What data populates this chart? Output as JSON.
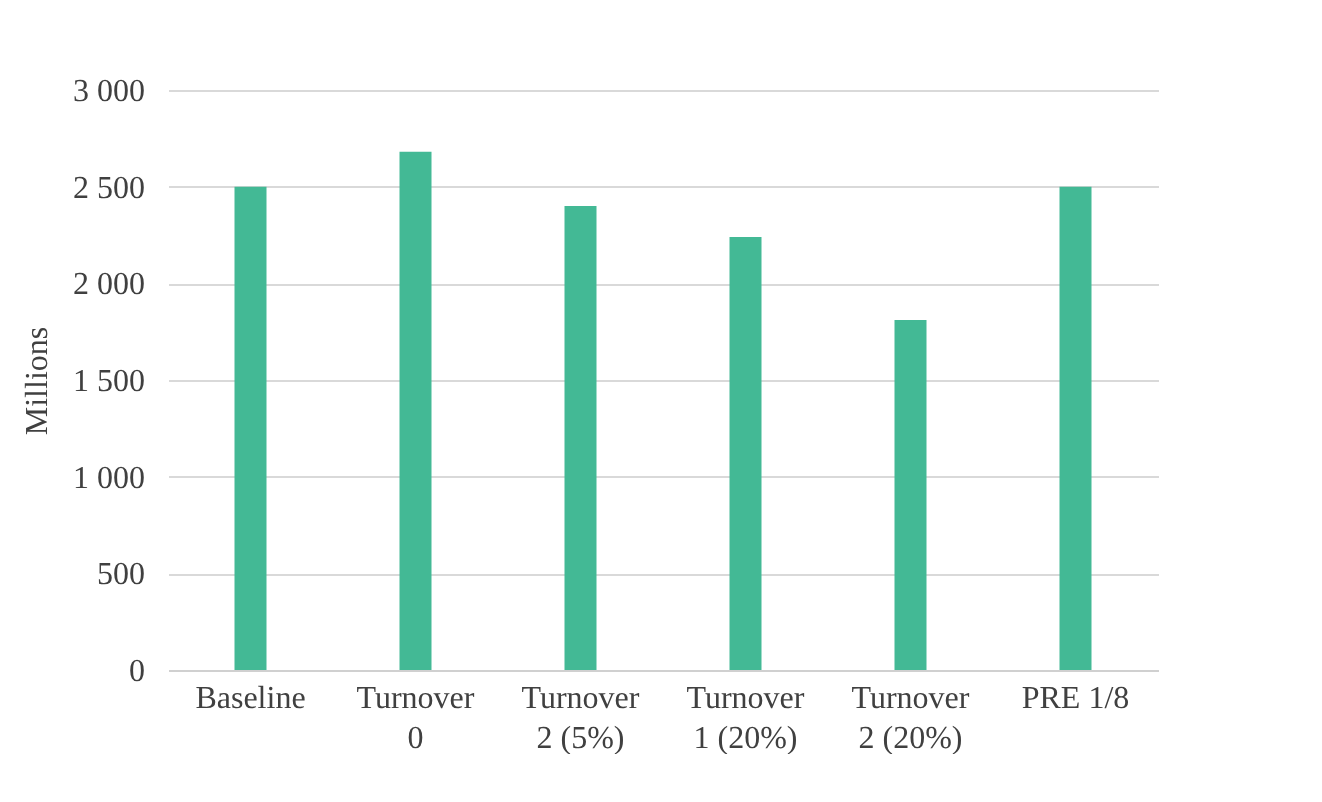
{
  "chart_data": {
    "type": "bar",
    "ylabel": "Millions",
    "categories": [
      "Baseline",
      "Turnover\n0",
      "Turnover\n2 (5%)",
      "Turnover\n1 (20%)",
      "Turnover\n2 (20%)",
      "PRE 1/8"
    ],
    "values": [
      2500,
      2680,
      2400,
      2240,
      1810,
      2500
    ],
    "color": "#43b995",
    "ylim": [
      0,
      3000
    ],
    "yticks": [
      {
        "value": 0,
        "label": "0"
      },
      {
        "value": 500,
        "label": "500"
      },
      {
        "value": 1000,
        "label": "1 000"
      },
      {
        "value": 1500,
        "label": "1 500"
      },
      {
        "value": 2000,
        "label": "2 000"
      },
      {
        "value": 2500,
        "label": "2 500"
      },
      {
        "value": 3000,
        "label": "3 000"
      }
    ],
    "grid": "y"
  }
}
